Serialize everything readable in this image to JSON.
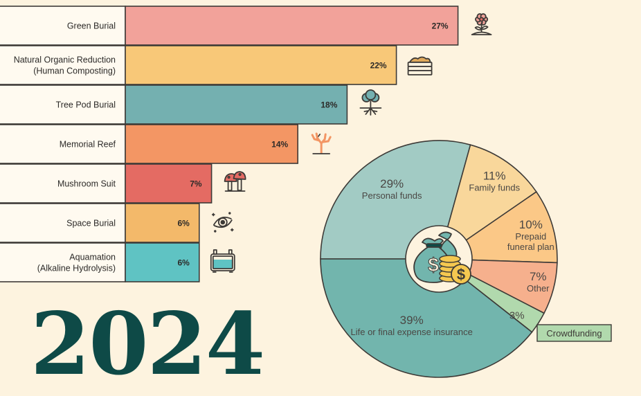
{
  "year": "2024",
  "colors": {
    "background": "#fdf3df",
    "outline": "#3d3a37",
    "label_box": "#fffaf0",
    "dark_teal": "#0e4a47"
  },
  "chart_data": [
    {
      "type": "bar",
      "orientation": "horizontal",
      "categories": [
        "Green Burial",
        "Natural Organic Reduction\n(Human Composting)",
        "Tree Pod Burial",
        "Memorial Reef",
        "Mushroom Suit",
        "Space Burial",
        "Aquamation\n(Alkaline Hydrolysis)"
      ],
      "values": [
        27,
        22,
        18,
        14,
        7,
        6,
        6
      ],
      "value_labels": [
        "27%",
        "22%",
        "18%",
        "14%",
        "7%",
        "6%",
        "6%"
      ],
      "colors": [
        "#f2a29a",
        "#f8c878",
        "#74b0b0",
        "#f39664",
        "#e46b63",
        "#f3b96a",
        "#5fc3c3"
      ],
      "icons": [
        "flower-icon",
        "compost-crate-icon",
        "tree-icon",
        "coral-icon",
        "mushroom-icon",
        "galaxy-icon",
        "water-tank-icon"
      ],
      "xlim": [
        0,
        30
      ]
    },
    {
      "type": "pie",
      "labels": [
        "Personal funds",
        "Family funds",
        "Prepaid\nfuneral plan",
        "Other",
        "Crowdfunding",
        "Life or final expense insurance"
      ],
      "values": [
        29,
        11,
        10,
        7,
        3,
        39
      ],
      "value_labels": [
        "29%",
        "11%",
        "10%",
        "7%",
        "3%",
        "39%"
      ],
      "colors": [
        "#a2cbc4",
        "#f9d79b",
        "#fbc887",
        "#f6b08d",
        "#b1d9ad",
        "#72b5ad"
      ],
      "center_icon": "money-bag-coins-icon"
    }
  ]
}
